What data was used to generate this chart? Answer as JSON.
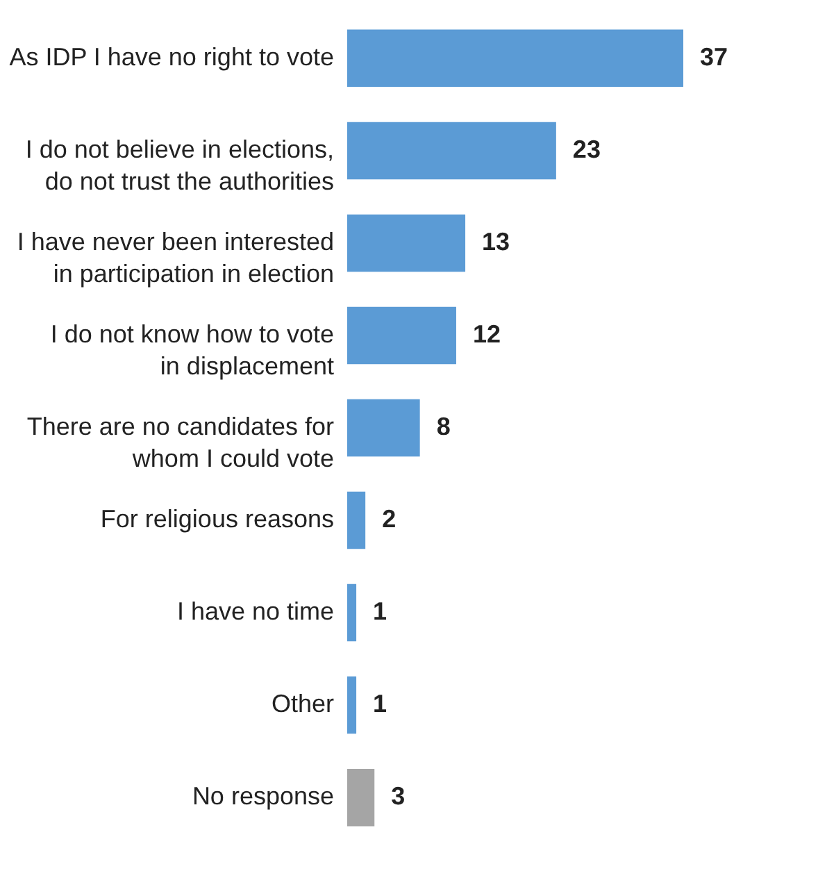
{
  "chart_data": {
    "type": "bar",
    "orientation": "horizontal",
    "data_labels": true,
    "categories": [
      "As IDP I have no right to vote",
      "I do not believe in elections,\ndo not trust the authorities",
      "I have never been interested\nin participation in election",
      "I do not know how to vote\nin displacement",
      "There are no candidates for\nwhom I could vote",
      "For religious reasons",
      "I have no time",
      "Other",
      "No response"
    ],
    "values": [
      37,
      23,
      13,
      12,
      8,
      2,
      1,
      1,
      3
    ],
    "colors": [
      "#5b9bd5",
      "#5b9bd5",
      "#5b9bd5",
      "#5b9bd5",
      "#5b9bd5",
      "#5b9bd5",
      "#5b9bd5",
      "#5b9bd5",
      "#a5a5a5"
    ]
  }
}
